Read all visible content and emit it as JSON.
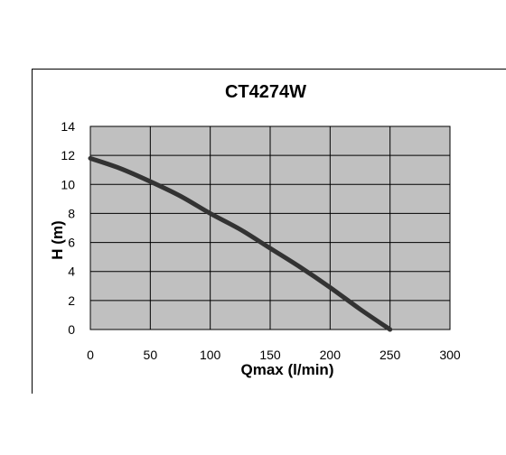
{
  "chart_data": {
    "type": "line",
    "title": "CT4274W",
    "xlabel": "Qmax (l/min)",
    "ylabel": "H (m)",
    "xlim": [
      0,
      300
    ],
    "ylim": [
      0,
      14
    ],
    "xticks": [
      0,
      50,
      100,
      150,
      200,
      250,
      300
    ],
    "yticks": [
      0,
      2,
      4,
      6,
      8,
      10,
      12,
      14
    ],
    "xtick_labels": [
      "0",
      "50",
      "100",
      "150",
      "200",
      "250",
      "300"
    ],
    "ytick_labels": [
      "0",
      "2",
      "4",
      "6",
      "8",
      "10",
      "12",
      "14"
    ],
    "grid": true,
    "plot_background": "#c0c0c0",
    "series": [
      {
        "color": "#333333",
        "x": [
          0,
          25,
          50,
          75,
          100,
          125,
          150,
          175,
          200,
          225,
          250
        ],
        "y": [
          11.8,
          11.1,
          10.2,
          9.2,
          8.0,
          6.9,
          5.6,
          4.3,
          2.9,
          1.4,
          0
        ]
      }
    ]
  }
}
